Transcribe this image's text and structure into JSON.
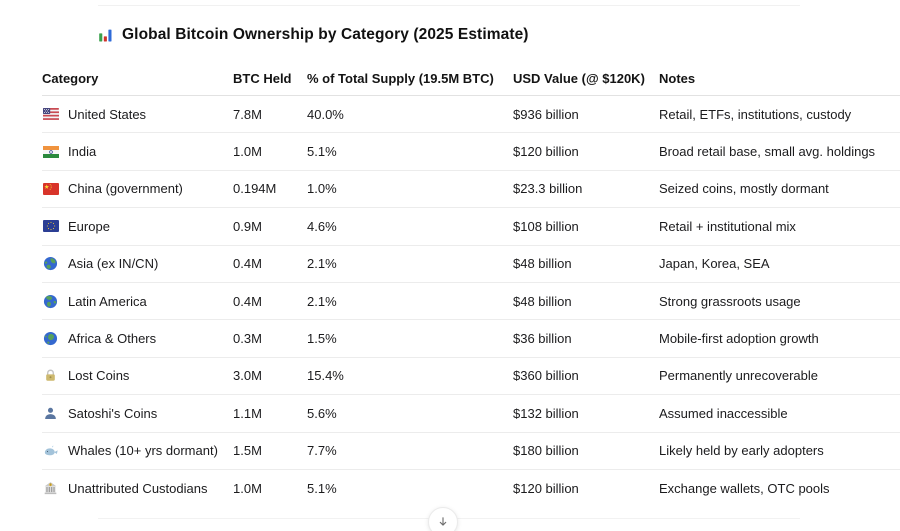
{
  "title": {
    "icon": "bar-chart-icon",
    "text": "Global Bitcoin Ownership by Category (2025 Estimate)"
  },
  "table": {
    "columns": [
      "Category",
      "BTC Held",
      "% of Total Supply (19.5M BTC)",
      "USD Value (@ $120K)",
      "Notes"
    ],
    "rows": [
      {
        "icon": "us-flag-icon",
        "category": "United States",
        "btc_held": "7.8M",
        "pct_supply": "40.0%",
        "usd_value": "$936 billion",
        "notes": "Retail, ETFs, institutions, custody"
      },
      {
        "icon": "india-flag-icon",
        "category": "India",
        "btc_held": "1.0M",
        "pct_supply": "5.1%",
        "usd_value": "$120 billion",
        "notes": "Broad retail base, small avg. holdings"
      },
      {
        "icon": "china-flag-icon",
        "category": "China (government)",
        "btc_held": "0.194M",
        "pct_supply": "1.0%",
        "usd_value": "$23.3 billion",
        "notes": "Seized coins, mostly dormant"
      },
      {
        "icon": "eu-flag-icon",
        "category": "Europe",
        "btc_held": "0.9M",
        "pct_supply": "4.6%",
        "usd_value": "$108 billion",
        "notes": "Retail + institutional mix"
      },
      {
        "icon": "globe-asia-icon",
        "category": "Asia (ex IN/CN)",
        "btc_held": "0.4M",
        "pct_supply": "2.1%",
        "usd_value": "$48 billion",
        "notes": "Japan, Korea, SEA"
      },
      {
        "icon": "globe-americas-icon",
        "category": "Latin America",
        "btc_held": "0.4M",
        "pct_supply": "2.1%",
        "usd_value": "$48 billion",
        "notes": "Strong grassroots usage"
      },
      {
        "icon": "globe-africa-icon",
        "category": "Africa & Others",
        "btc_held": "0.3M",
        "pct_supply": "1.5%",
        "usd_value": "$36 billion",
        "notes": "Mobile-first adoption growth"
      },
      {
        "icon": "lock-icon",
        "category": "Lost Coins",
        "btc_held": "3.0M",
        "pct_supply": "15.4%",
        "usd_value": "$360 billion",
        "notes": "Permanently unrecoverable"
      },
      {
        "icon": "person-icon",
        "category": "Satoshi's Coins",
        "btc_held": "1.1M",
        "pct_supply": "5.6%",
        "usd_value": "$132 billion",
        "notes": "Assumed inaccessible"
      },
      {
        "icon": "whale-icon",
        "category": "Whales (10+ yrs dormant)",
        "btc_held": "1.5M",
        "pct_supply": "7.7%",
        "usd_value": "$180 billion",
        "notes": "Likely held by early adopters"
      },
      {
        "icon": "bank-icon",
        "category": "Unattributed Custodians",
        "btc_held": "1.0M",
        "pct_supply": "5.1%",
        "usd_value": "$120 billion",
        "notes": "Exchange wallets, OTC pools"
      }
    ]
  },
  "scroll_button": {
    "icon": "arrow-down-icon"
  },
  "colors": {
    "text": "#1b1b1d",
    "row_divider": "#ececec",
    "header_divider": "#e2e2e2",
    "accent_green": "#3aa14c",
    "accent_red": "#d0342c",
    "accent_blue": "#2f6bd8"
  }
}
